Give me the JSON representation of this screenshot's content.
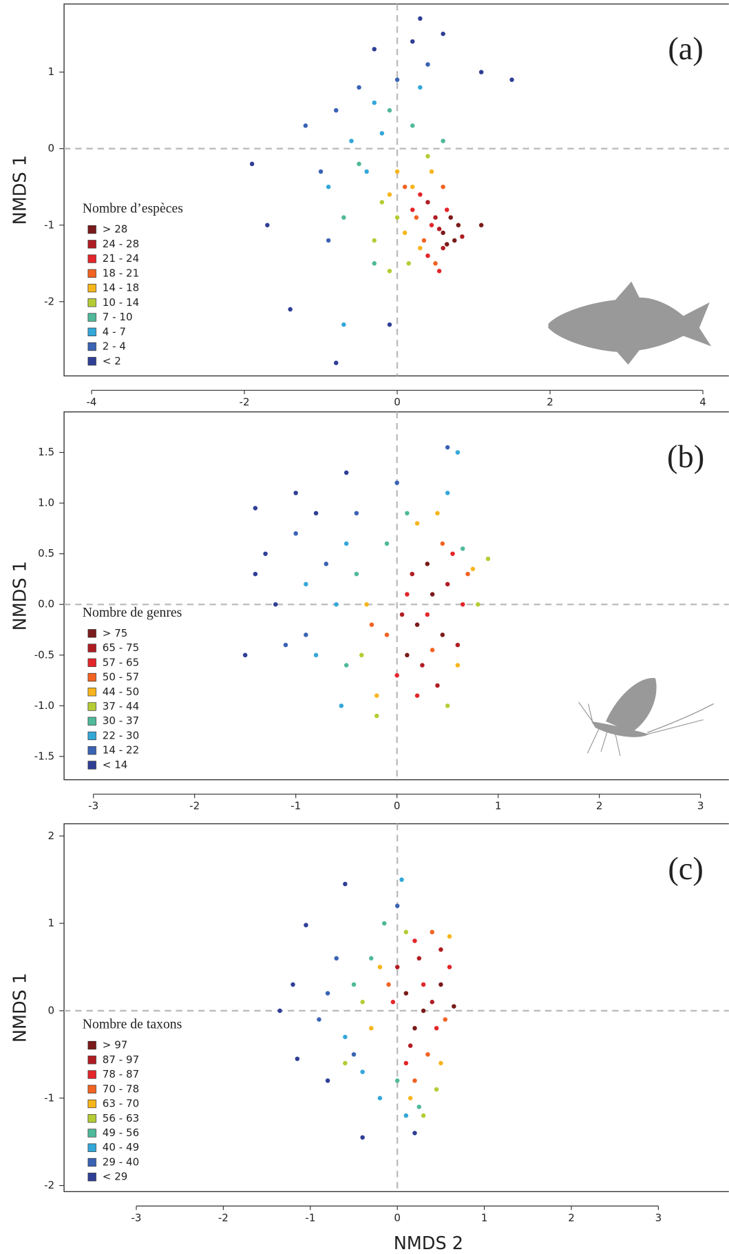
{
  "chart_data": [
    {
      "type": "scatter",
      "label": "(a)",
      "y_label": "NMDS 1",
      "legend_title": "Nombre d’espèces",
      "xlim": [
        -4.36,
        4.34
      ],
      "ylim": [
        -2.97,
        1.89
      ],
      "xticks": [
        -4,
        -2,
        0,
        2,
        4
      ],
      "yticks": [
        -2,
        -1,
        0,
        1
      ],
      "series": [
        {
          "name": "> 28",
          "color": "#7a1a1a",
          "x": [
            0.6,
            0.75,
            0.8,
            0.65,
            1.1,
            0.7
          ],
          "y": [
            -1.1,
            -1.2,
            -1.0,
            -1.25,
            -1.0,
            -0.9
          ]
        },
        {
          "name": "24 - 28",
          "color": "#b01c22",
          "x": [
            0.5,
            0.6,
            0.4,
            0.85,
            0.55
          ],
          "y": [
            -0.9,
            -1.3,
            -0.7,
            -1.15,
            -1.05
          ]
        },
        {
          "name": "21 - 24",
          "color": "#e3262a",
          "x": [
            0.3,
            0.45,
            0.55,
            0.2,
            0.65,
            0.4
          ],
          "y": [
            -0.6,
            -1.0,
            -1.6,
            -0.8,
            -0.8,
            -1.4
          ]
        },
        {
          "name": "18 - 21",
          "color": "#f26322",
          "x": [
            0.1,
            0.35,
            0.5,
            0.25,
            0.6
          ],
          "y": [
            -0.5,
            -1.2,
            -1.5,
            -0.9,
            -0.5
          ]
        },
        {
          "name": "14 - 18",
          "color": "#f7b51c",
          "x": [
            0.0,
            0.2,
            -0.1,
            0.3,
            0.45,
            0.1
          ],
          "y": [
            -0.3,
            -0.5,
            -0.6,
            -1.3,
            -0.3,
            -1.1
          ]
        },
        {
          "name": "10 - 14",
          "color": "#b5cc34",
          "x": [
            -0.2,
            0.0,
            -0.3,
            0.15,
            0.4,
            -0.1
          ],
          "y": [
            -0.7,
            -0.9,
            -1.2,
            -1.5,
            -0.1,
            -1.6
          ]
        },
        {
          "name": "7 - 10",
          "color": "#4fb99a",
          "x": [
            -0.5,
            -0.3,
            -0.7,
            0.2,
            -0.1,
            0.6
          ],
          "y": [
            -0.2,
            -1.5,
            -0.9,
            0.3,
            0.5,
            0.1
          ]
        },
        {
          "name": "4 - 7",
          "color": "#34a7d9",
          "x": [
            -0.6,
            -0.4,
            -0.2,
            -0.9,
            -0.7,
            -0.3,
            0.3
          ],
          "y": [
            0.1,
            -0.3,
            0.2,
            -0.5,
            -2.3,
            0.6,
            0.8
          ]
        },
        {
          "name": "2 - 4",
          "color": "#3a63b4",
          "x": [
            -0.8,
            -0.5,
            0.0,
            -1.2,
            -0.9,
            0.4,
            -1.0
          ],
          "y": [
            0.5,
            0.8,
            0.9,
            0.3,
            -1.2,
            1.1,
            -0.3
          ]
        },
        {
          "name": "< 2",
          "color": "#2f3f96",
          "x": [
            -0.3,
            0.2,
            0.6,
            1.1,
            1.5,
            -1.9,
            -1.4,
            -0.8,
            -1.7,
            -0.1,
            0.3
          ],
          "y": [
            1.3,
            1.4,
            1.5,
            1.0,
            0.9,
            -0.2,
            -2.1,
            -2.8,
            -1.0,
            -2.3,
            1.7
          ]
        }
      ]
    },
    {
      "type": "scatter",
      "label": "(b)",
      "y_label": "NMDS 1",
      "legend_title": "Nombre de genres",
      "xlim": [
        -3.29,
        3.28
      ],
      "ylim": [
        -1.73,
        1.9
      ],
      "xticks": [
        -3,
        -2,
        -1,
        0,
        1,
        2,
        3
      ],
      "yticks": [
        {
          "value": -1.5,
          "label": "-1.5"
        },
        {
          "value": -1,
          "label": "-1.0"
        },
        {
          "value": -0.5,
          "label": "-0.5"
        },
        {
          "value": 0,
          "label": "0.0"
        },
        {
          "value": 0.5,
          "label": "0.5"
        },
        {
          "value": 1,
          "label": "1.0"
        },
        {
          "value": 1.5,
          "label": "1.5"
        }
      ],
      "series": [
        {
          "name": "> 75",
          "color": "#7a1a1a",
          "x": [
            0.2,
            0.35,
            0.1,
            0.45,
            0.3
          ],
          "y": [
            -0.2,
            0.1,
            -0.5,
            -0.3,
            0.4
          ]
        },
        {
          "name": "65 - 75",
          "color": "#b01c22",
          "x": [
            0.25,
            0.5,
            0.05,
            0.6,
            0.15,
            0.4
          ],
          "y": [
            -0.6,
            0.2,
            -0.1,
            -0.4,
            0.3,
            -0.8
          ]
        },
        {
          "name": "57 - 65",
          "color": "#e3262a",
          "x": [
            0.3,
            0.55,
            0.0,
            0.2,
            0.65,
            0.1
          ],
          "y": [
            -0.1,
            0.5,
            -0.7,
            -0.9,
            0.0,
            0.1
          ]
        },
        {
          "name": "50 - 57",
          "color": "#f26322",
          "x": [
            0.45,
            -0.1,
            0.7,
            0.35,
            -0.25
          ],
          "y": [
            0.6,
            -0.3,
            0.3,
            -0.45,
            -0.2
          ]
        },
        {
          "name": "44 - 50",
          "color": "#f7b51c",
          "x": [
            0.4,
            -0.2,
            0.6,
            0.75,
            0.2,
            -0.3
          ],
          "y": [
            0.9,
            -0.9,
            -0.6,
            0.35,
            0.8,
            0.0
          ]
        },
        {
          "name": "37 - 44",
          "color": "#b5cc34",
          "x": [
            -0.2,
            0.8,
            0.9,
            -0.35,
            0.5
          ],
          "y": [
            -1.1,
            0.0,
            0.45,
            -0.5,
            -1.0
          ]
        },
        {
          "name": "30 - 37",
          "color": "#4fb99a",
          "x": [
            -0.4,
            -0.5,
            0.1,
            0.65,
            -0.1
          ],
          "y": [
            0.3,
            -0.6,
            0.9,
            0.55,
            0.6
          ]
        },
        {
          "name": "22 - 30",
          "color": "#34a7d9",
          "x": [
            -0.6,
            -0.8,
            -0.5,
            -0.9,
            -0.55,
            0.5,
            0.6
          ],
          "y": [
            0.0,
            -0.5,
            0.6,
            0.2,
            -1.0,
            1.1,
            1.5
          ]
        },
        {
          "name": "14 - 22",
          "color": "#3a63b4",
          "x": [
            -0.7,
            -1.0,
            -0.4,
            -0.9,
            -1.1,
            0.0,
            0.5
          ],
          "y": [
            0.4,
            0.7,
            0.9,
            -0.3,
            -0.4,
            1.2,
            1.55
          ]
        },
        {
          "name": "< 14",
          "color": "#2f3f96",
          "x": [
            -1.4,
            -1.3,
            -1.0,
            -0.8,
            -1.5,
            -1.2,
            -0.5,
            -1.4
          ],
          "y": [
            0.95,
            0.5,
            1.1,
            0.9,
            -0.5,
            0.0,
            1.3,
            0.3
          ]
        }
      ]
    },
    {
      "type": "scatter",
      "label": "(c)",
      "y_label": "NMDS 1",
      "x_label": "NMDS 2",
      "legend_title": "Nombre de taxons",
      "xlim": [
        -3.83,
        3.81
      ],
      "ylim": [
        -2.07,
        2.14
      ],
      "xticks": [
        -3,
        -2,
        -1,
        0,
        1,
        2,
        3
      ],
      "yticks": [
        -2,
        -1,
        0,
        1,
        2
      ],
      "series": [
        {
          "name": "> 97",
          "color": "#7a1a1a",
          "x": [
            0.1,
            0.3,
            0.5,
            0.2,
            0.65
          ],
          "y": [
            0.2,
            0.0,
            0.3,
            -0.2,
            0.05
          ]
        },
        {
          "name": "87 - 97",
          "color": "#b01c22",
          "x": [
            0.0,
            0.25,
            0.4,
            0.15,
            0.5
          ],
          "y": [
            0.5,
            0.6,
            0.1,
            -0.4,
            0.7
          ]
        },
        {
          "name": "78 - 87",
          "color": "#e3262a",
          "x": [
            0.3,
            0.1,
            0.45,
            -0.05,
            0.6,
            0.2
          ],
          "y": [
            0.3,
            -0.6,
            -0.2,
            0.1,
            0.5,
            0.8
          ]
        },
        {
          "name": "70 - 78",
          "color": "#f26322",
          "x": [
            0.35,
            0.2,
            -0.1,
            0.55,
            0.4
          ],
          "y": [
            -0.5,
            -0.8,
            0.3,
            -0.1,
            0.9
          ]
        },
        {
          "name": "63 - 70",
          "color": "#f7b51c",
          "x": [
            0.15,
            0.5,
            -0.2,
            0.6,
            -0.3
          ],
          "y": [
            -1.0,
            -0.6,
            0.5,
            0.85,
            -0.2
          ]
        },
        {
          "name": "56 - 63",
          "color": "#b5cc34",
          "x": [
            0.3,
            -0.4,
            0.45,
            -0.6,
            0.1
          ],
          "y": [
            -1.2,
            0.1,
            -0.9,
            -0.6,
            0.9
          ]
        },
        {
          "name": "49 - 56",
          "color": "#4fb99a",
          "x": [
            -0.5,
            0.0,
            -0.3,
            0.25,
            -0.15
          ],
          "y": [
            0.3,
            -0.8,
            0.6,
            -1.1,
            1.0
          ]
        },
        {
          "name": "40 - 49",
          "color": "#34a7d9",
          "x": [
            -0.6,
            -0.4,
            0.05,
            -0.2,
            0.1
          ],
          "y": [
            -0.3,
            -0.7,
            1.5,
            -1.0,
            -1.2
          ]
        },
        {
          "name": "29 - 40",
          "color": "#3a63b4",
          "x": [
            -0.7,
            -0.9,
            -0.5,
            -0.8,
            0.0
          ],
          "y": [
            0.6,
            -0.1,
            -0.5,
            0.2,
            1.2
          ]
        },
        {
          "name": "< 29",
          "color": "#2f3f96",
          "x": [
            -1.35,
            -0.6,
            -1.05,
            -1.15,
            -0.4,
            0.2,
            -1.2,
            -0.8
          ],
          "y": [
            0.0,
            1.45,
            0.98,
            -0.55,
            -1.45,
            -1.4,
            0.3,
            -0.8
          ]
        }
      ]
    }
  ]
}
